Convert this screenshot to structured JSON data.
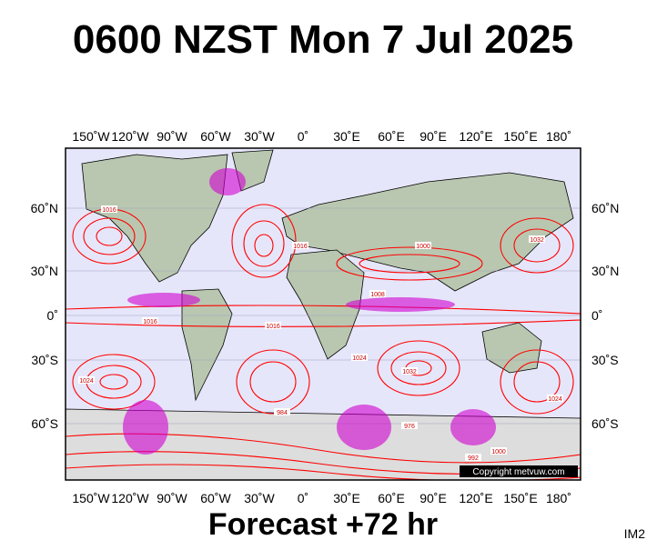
{
  "title": "0600 NZST Mon 7 Jul 2025",
  "map": {
    "lon_labels": [
      "150˚W",
      "120˚W",
      "90˚W",
      "60˚W",
      "30˚W",
      "0˚",
      "30˚E",
      "60˚E",
      "90˚E",
      "120˚E",
      "150˚E",
      "180˚"
    ],
    "lat_labels": [
      "60˚N",
      "30˚N",
      "0˚",
      "30˚S",
      "60˚S"
    ],
    "isobar_labels": [
      "1016",
      "1024",
      "1016",
      "1008",
      "1000",
      "1032",
      "1024",
      "1016",
      "984",
      "976",
      "992",
      "1000",
      "1032",
      "1024",
      "1016"
    ],
    "copyright": "Copyright metvuw.com"
  },
  "footer": "Forecast +72 hr",
  "tag": "IM2"
}
